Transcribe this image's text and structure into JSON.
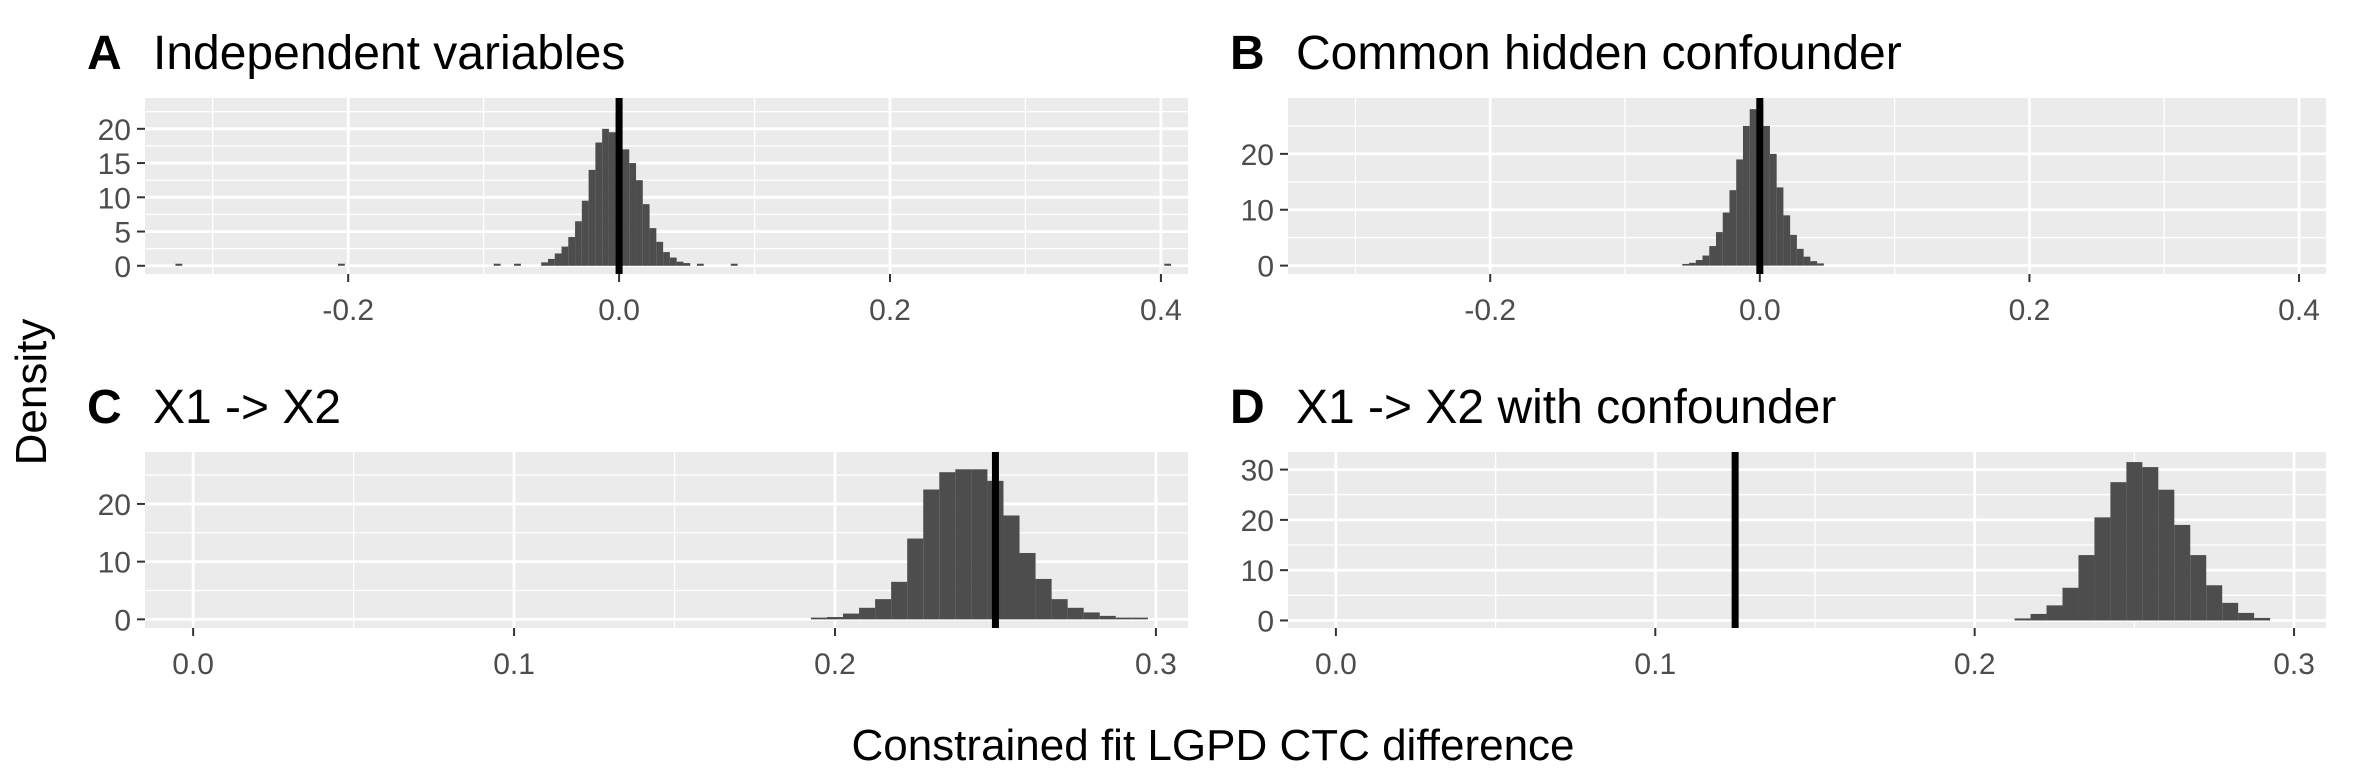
{
  "figure": {
    "ylabel": "Density",
    "xlabel": "Constrained fit LGPD CTC difference"
  },
  "colors": {
    "panel_background": "#ebebeb",
    "grid_major": "#ffffff",
    "bars": "#4d4d4d",
    "reference_line": "#000000",
    "tick_text": "#4d4d4d"
  },
  "chart_data": [
    {
      "type": "bar",
      "letter": "A",
      "title": "Independent variables",
      "xlim": [
        -0.35,
        0.42
      ],
      "ylim": [
        -1.2,
        24.5
      ],
      "xticks": [
        -0.2,
        0.0,
        0.2,
        0.4
      ],
      "xtick_labels": [
        "-0.2",
        "0.0",
        "0.2",
        "0.4"
      ],
      "yticks": [
        0,
        5,
        10,
        15,
        20
      ],
      "ytick_labels": [
        "0",
        "5",
        "10",
        "15",
        "20"
      ],
      "bin_width": 0.005,
      "bins": [
        [
          -0.325,
          0.3
        ],
        [
          -0.205,
          0.3
        ],
        [
          -0.09,
          0.3
        ],
        [
          -0.075,
          0.3
        ],
        [
          -0.055,
          0.5
        ],
        [
          -0.05,
          1.0
        ],
        [
          -0.045,
          1.8
        ],
        [
          -0.04,
          2.8
        ],
        [
          -0.035,
          4.2
        ],
        [
          -0.03,
          6.5
        ],
        [
          -0.025,
          9.5
        ],
        [
          -0.02,
          14.0
        ],
        [
          -0.015,
          18.0
        ],
        [
          -0.01,
          20.0
        ],
        [
          -0.005,
          19.5
        ],
        [
          0.0,
          22.5
        ],
        [
          0.005,
          17.0
        ],
        [
          0.01,
          15.0
        ],
        [
          0.015,
          12.5
        ],
        [
          0.02,
          9.0
        ],
        [
          0.025,
          5.5
        ],
        [
          0.03,
          3.5
        ],
        [
          0.035,
          2.0
        ],
        [
          0.04,
          1.2
        ],
        [
          0.045,
          0.6
        ],
        [
          0.05,
          0.4
        ],
        [
          0.06,
          0.3
        ],
        [
          0.085,
          0.3
        ],
        [
          0.405,
          0.3
        ]
      ],
      "reference_x": 0.0,
      "grid": true
    },
    {
      "type": "bar",
      "letter": "B",
      "title": "Common hidden confounder",
      "xlim": [
        -0.35,
        0.42
      ],
      "ylim": [
        -1.5,
        30
      ],
      "xticks": [
        -0.2,
        0.0,
        0.2,
        0.4
      ],
      "xtick_labels": [
        "-0.2",
        "0.0",
        "0.2",
        "0.4"
      ],
      "yticks": [
        0,
        10,
        20
      ],
      "ytick_labels": [
        "0",
        "10",
        "20"
      ],
      "bin_width": 0.005,
      "bins": [
        [
          -0.055,
          0.3
        ],
        [
          -0.05,
          0.5
        ],
        [
          -0.045,
          1.0
        ],
        [
          -0.04,
          1.8
        ],
        [
          -0.035,
          3.5
        ],
        [
          -0.03,
          6.0
        ],
        [
          -0.025,
          9.5
        ],
        [
          -0.02,
          13.5
        ],
        [
          -0.015,
          19.0
        ],
        [
          -0.01,
          25.0
        ],
        [
          -0.005,
          28.0
        ],
        [
          0.0,
          29.0
        ],
        [
          0.005,
          25.0
        ],
        [
          0.01,
          20.0
        ],
        [
          0.015,
          14.0
        ],
        [
          0.02,
          9.0
        ],
        [
          0.025,
          5.5
        ],
        [
          0.03,
          3.0
        ],
        [
          0.035,
          1.6
        ],
        [
          0.04,
          0.8
        ],
        [
          0.045,
          0.4
        ]
      ],
      "reference_x": 0.0,
      "grid": true
    },
    {
      "type": "bar",
      "letter": "C",
      "title": "X1 -> X2",
      "xlim": [
        -0.015,
        0.31
      ],
      "ylim": [
        -1.5,
        29
      ],
      "xticks": [
        0.0,
        0.1,
        0.2,
        0.3
      ],
      "xtick_labels": [
        "0.0",
        "0.1",
        "0.2",
        "0.3"
      ],
      "yticks": [
        0,
        10,
        20
      ],
      "ytick_labels": [
        "0",
        "10",
        "20"
      ],
      "bin_width": 0.005,
      "bins": [
        [
          0.195,
          0.3
        ],
        [
          0.2,
          0.4
        ],
        [
          0.205,
          1.0
        ],
        [
          0.21,
          2.0
        ],
        [
          0.215,
          3.5
        ],
        [
          0.22,
          6.5
        ],
        [
          0.225,
          14.0
        ],
        [
          0.23,
          22.5
        ],
        [
          0.235,
          25.5
        ],
        [
          0.24,
          26.0
        ],
        [
          0.245,
          26.0
        ],
        [
          0.25,
          24.0
        ],
        [
          0.255,
          18.0
        ],
        [
          0.26,
          11.5
        ],
        [
          0.265,
          7.0
        ],
        [
          0.27,
          3.5
        ],
        [
          0.275,
          2.0
        ],
        [
          0.28,
          1.2
        ],
        [
          0.285,
          0.6
        ],
        [
          0.29,
          0.3
        ],
        [
          0.295,
          0.3
        ]
      ],
      "reference_x": 0.25,
      "grid": true
    },
    {
      "type": "bar",
      "letter": "D",
      "title": "X1 -> X2 with confounder",
      "xlim": [
        -0.015,
        0.31
      ],
      "ylim": [
        -1.5,
        33.5
      ],
      "xticks": [
        0.0,
        0.1,
        0.2,
        0.3
      ],
      "xtick_labels": [
        "0.0",
        "0.1",
        "0.2",
        "0.3"
      ],
      "yticks": [
        0,
        10,
        20,
        30
      ],
      "ytick_labels": [
        "0",
        "10",
        "20",
        "30"
      ],
      "bin_width": 0.005,
      "bins": [
        [
          0.215,
          0.4
        ],
        [
          0.22,
          1.3
        ],
        [
          0.225,
          3.0
        ],
        [
          0.23,
          6.5
        ],
        [
          0.235,
          13.0
        ],
        [
          0.24,
          20.5
        ],
        [
          0.245,
          27.5
        ],
        [
          0.25,
          31.5
        ],
        [
          0.255,
          30.5
        ],
        [
          0.26,
          26.0
        ],
        [
          0.265,
          19.0
        ],
        [
          0.27,
          13.0
        ],
        [
          0.275,
          7.0
        ],
        [
          0.28,
          3.5
        ],
        [
          0.285,
          1.5
        ],
        [
          0.29,
          0.5
        ]
      ],
      "reference_x": 0.125,
      "grid": true
    }
  ]
}
